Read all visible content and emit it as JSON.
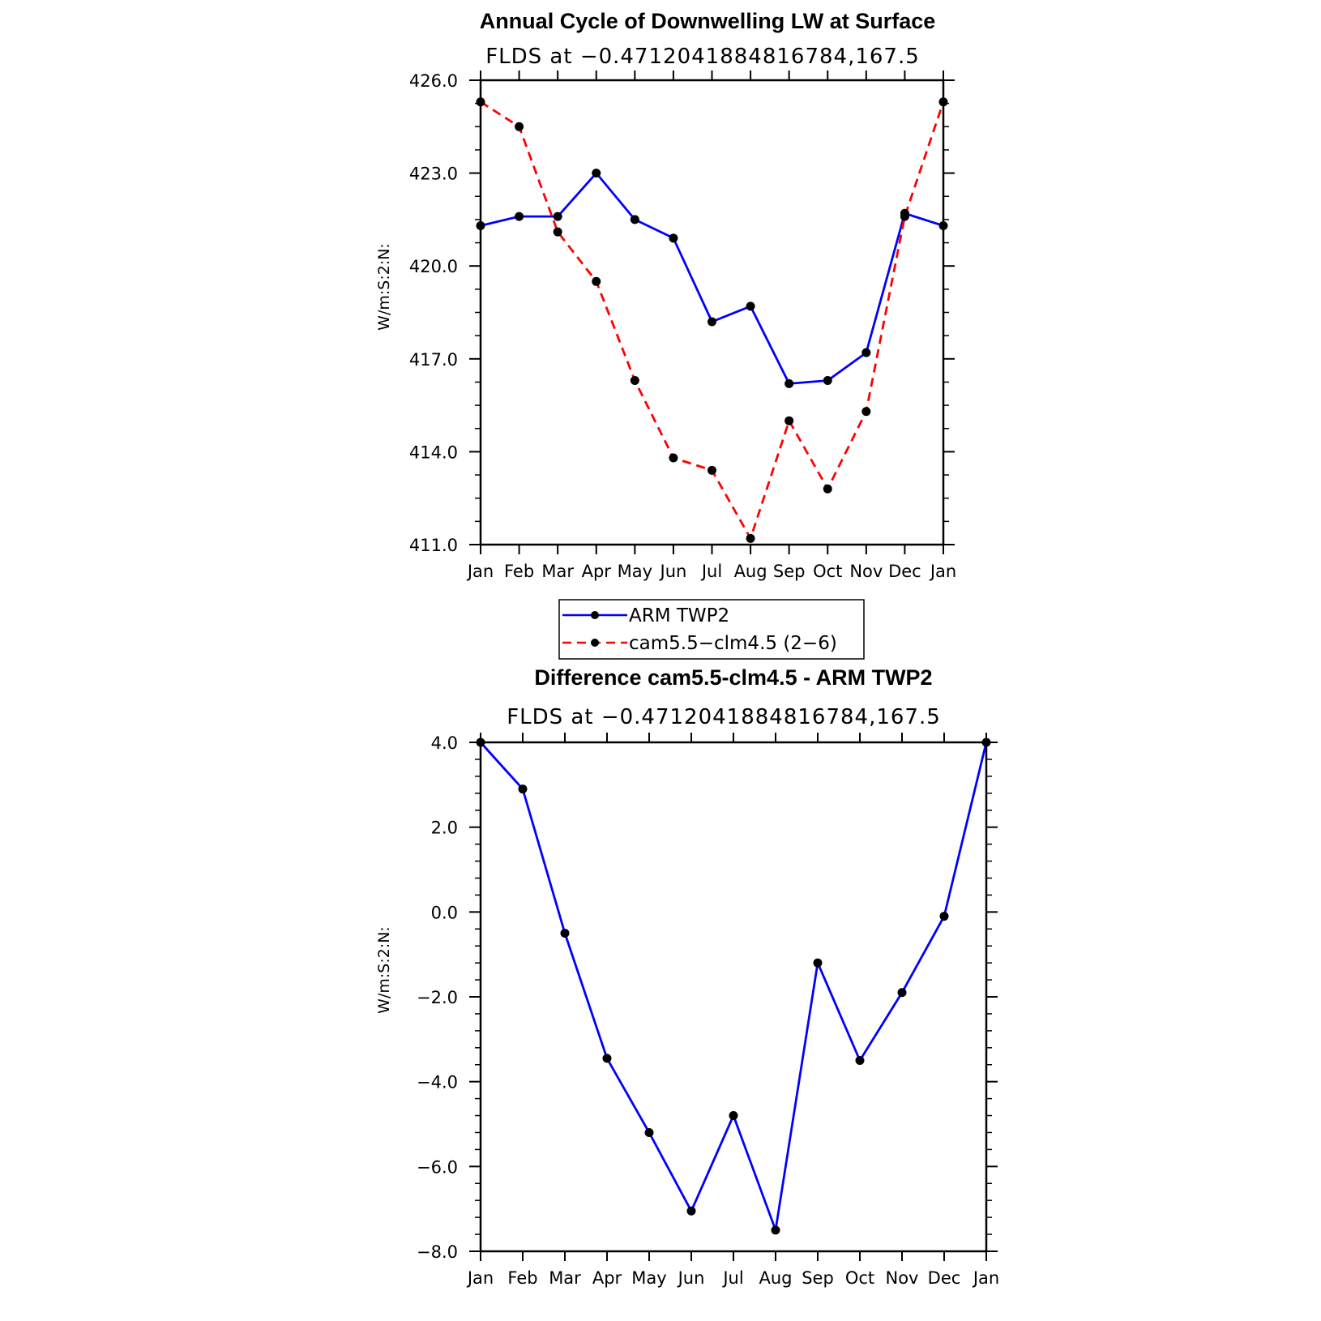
{
  "chart_data": [
    {
      "type": "line",
      "title": "Annual Cycle of Downwelling LW at Surface",
      "subtitle": "FLDS at −0.4712041884816784,167.5",
      "xlabel": "",
      "ylabel": "W/m:S:2:N:",
      "categories": [
        "Jan",
        "Feb",
        "Mar",
        "Apr",
        "May",
        "Jun",
        "Jul",
        "Aug",
        "Sep",
        "Oct",
        "Nov",
        "Dec",
        "Jan"
      ],
      "ylim": [
        411.0,
        426.0
      ],
      "yticks": [
        "411.0",
        "414.0",
        "417.0",
        "420.0",
        "423.0",
        "426.0"
      ],
      "grid": false,
      "legend_position": "below",
      "series": [
        {
          "name": "ARM TWP2",
          "color": "#0000ff",
          "dash": "solid",
          "values": [
            421.3,
            421.6,
            421.6,
            423.0,
            421.5,
            420.9,
            418.2,
            418.7,
            416.2,
            416.3,
            417.2,
            421.7,
            421.3
          ]
        },
        {
          "name": "cam5.5−clm4.5 (2−6)",
          "color": "#ff0000",
          "dash": "dashed",
          "values": [
            425.3,
            424.5,
            421.1,
            419.5,
            416.3,
            413.8,
            413.4,
            411.2,
            415.0,
            412.8,
            415.3,
            421.6,
            425.3
          ]
        }
      ]
    },
    {
      "type": "line",
      "title": "Difference cam5.5-clm4.5 - ARM TWP2",
      "subtitle": "FLDS at −0.4712041884816784,167.5",
      "xlabel": "",
      "ylabel": "W/m:S:2:N:",
      "categories": [
        "Jan",
        "Feb",
        "Mar",
        "Apr",
        "May",
        "Jun",
        "Jul",
        "Aug",
        "Sep",
        "Oct",
        "Nov",
        "Dec",
        "Jan"
      ],
      "ylim": [
        -8.0,
        4.0
      ],
      "yticks": [
        "−8.0",
        "−6.0",
        "−4.0",
        "−2.0",
        "0.0",
        "2.0",
        "4.0"
      ],
      "grid": false,
      "series": [
        {
          "color": "#0000ff",
          "dash": "solid",
          "values": [
            4.0,
            2.9,
            -0.5,
            -3.45,
            -5.2,
            -7.05,
            -4.8,
            -7.5,
            -1.2,
            -3.5,
            -1.9,
            -0.1,
            4.0
          ]
        }
      ]
    }
  ]
}
